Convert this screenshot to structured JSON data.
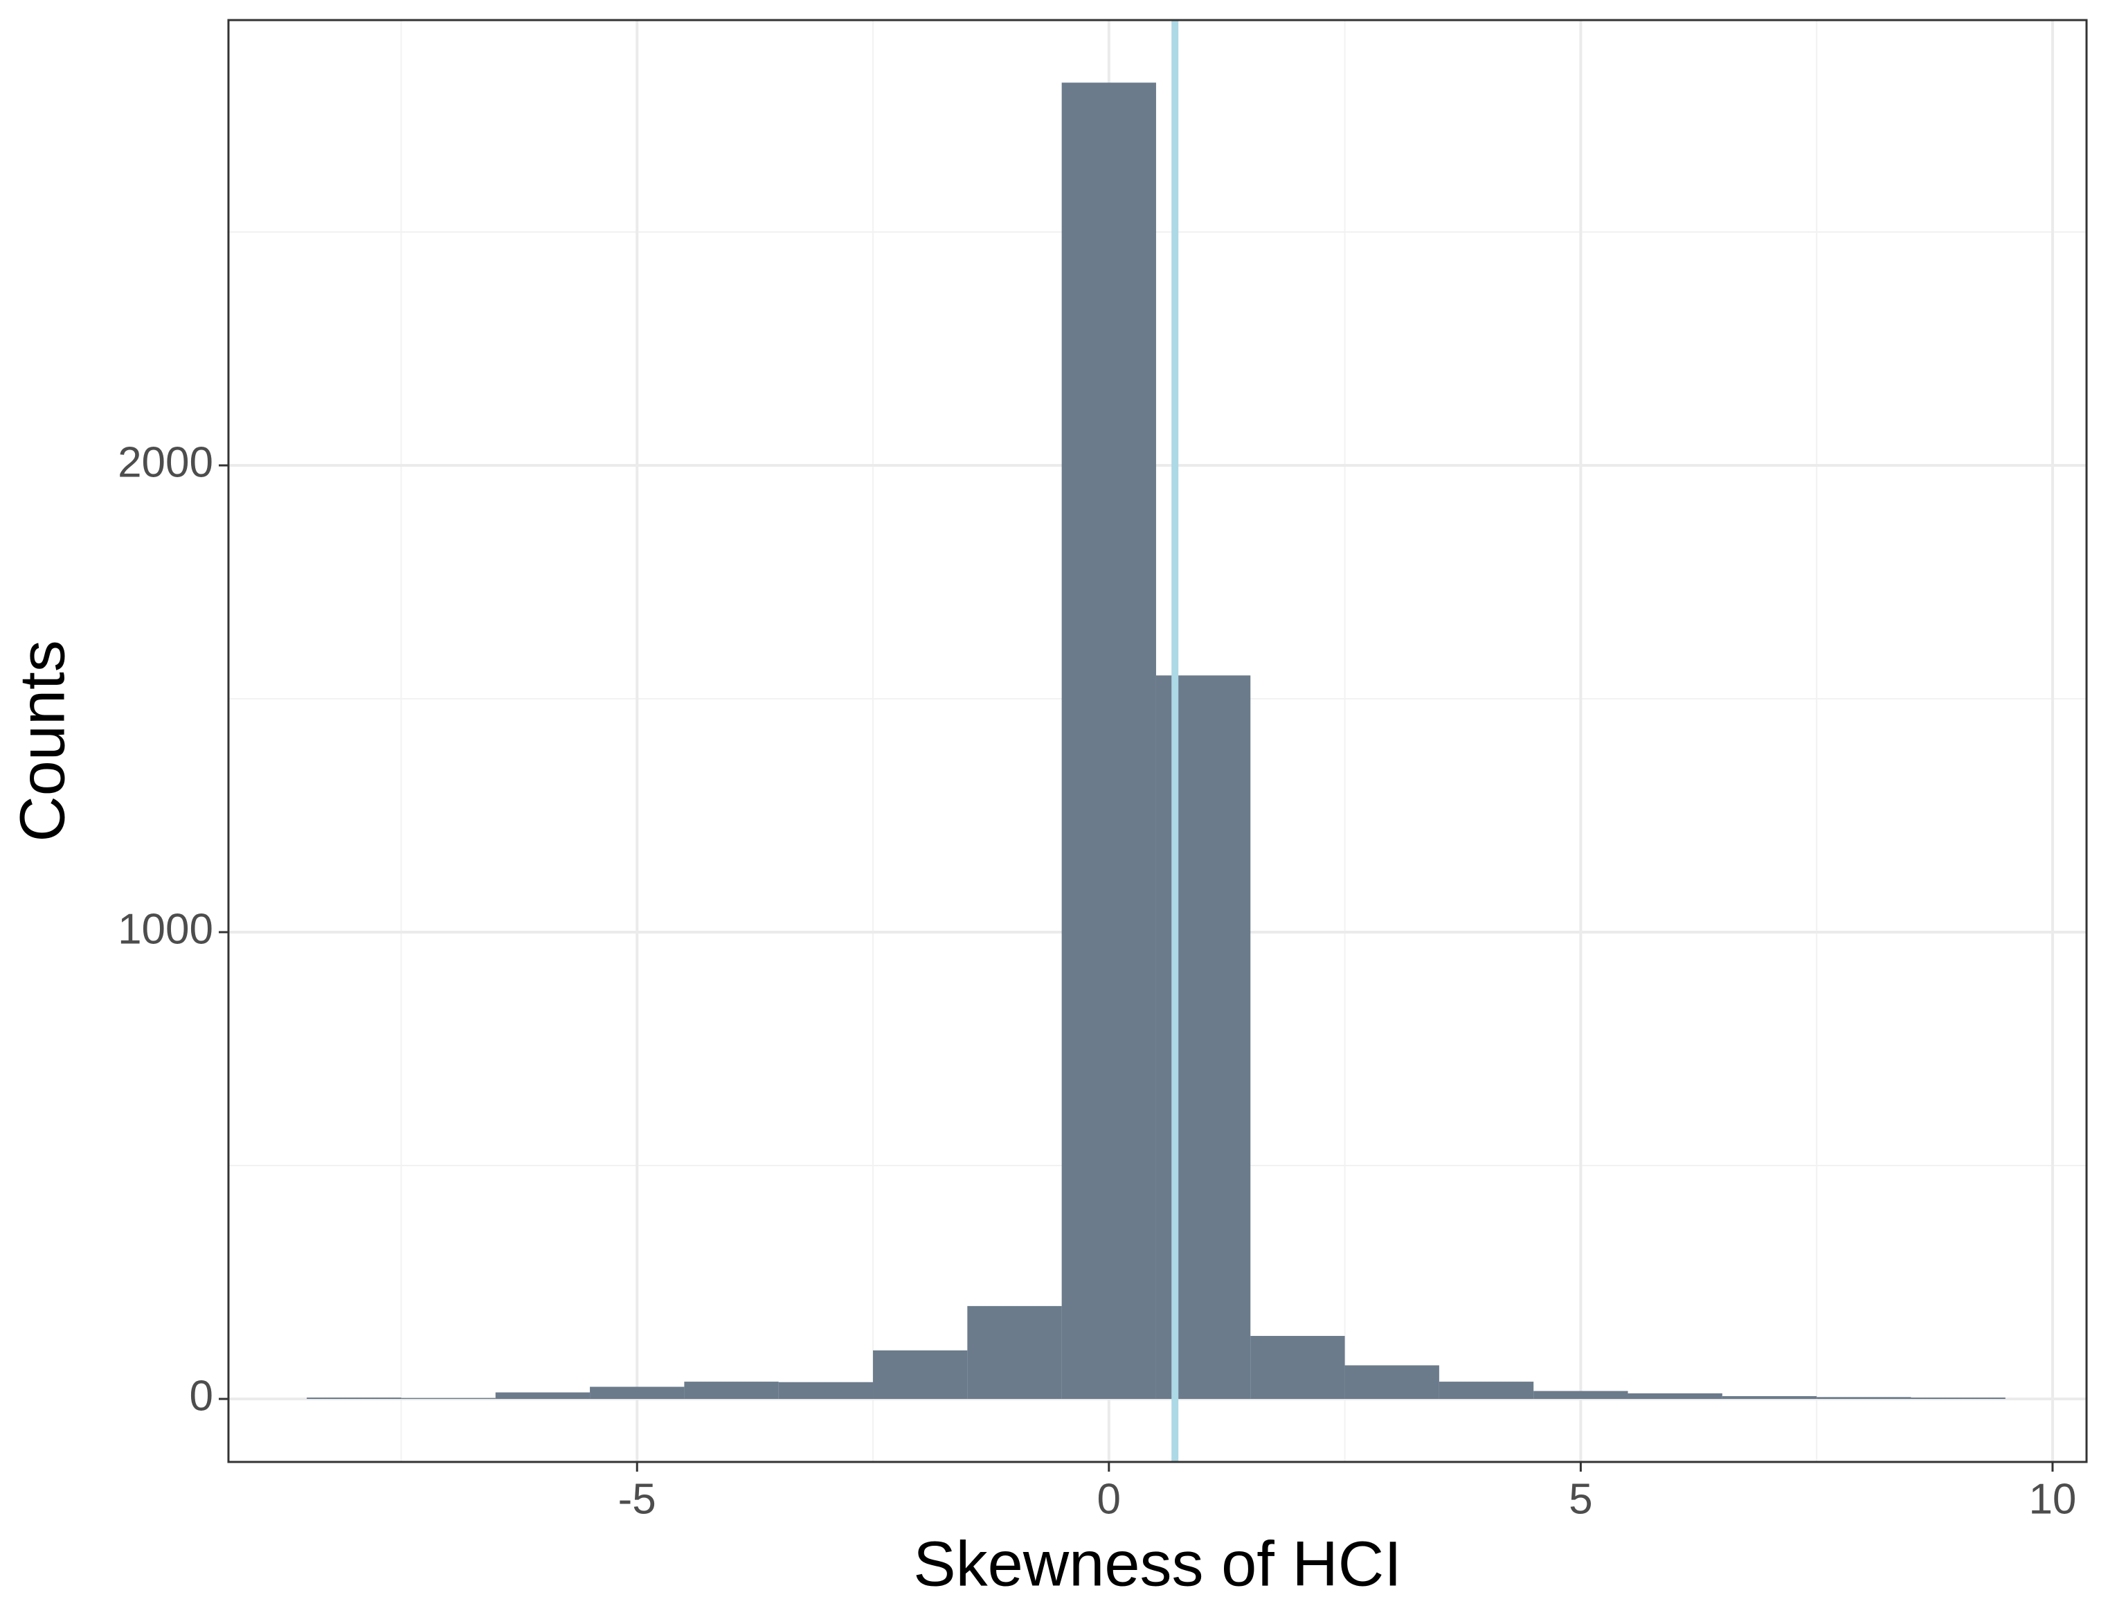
{
  "chart_data": {
    "type": "histogram",
    "x_label": "Skewness of HCI",
    "y_label": "Counts",
    "bins": [
      -8.5,
      -7.5,
      -6.5,
      -5.5,
      -4.5,
      -3.5,
      -2.5,
      -1.5,
      -0.5,
      0.5,
      1.5,
      2.5,
      3.5,
      4.5,
      5.5,
      6.5,
      7.5,
      8.5,
      9.5
    ],
    "counts": [
      3,
      2,
      14,
      26,
      37,
      36,
      104,
      199,
      2820,
      1550,
      135,
      72,
      37,
      17,
      12,
      6,
      4,
      3
    ],
    "color": "#6b7b8b",
    "xlim": [
      -9.33,
      10.36
    ],
    "xticks": [
      -5,
      0,
      5,
      10
    ],
    "ylim": [
      -135,
      2954
    ],
    "yticks": [
      0,
      1000,
      2000
    ],
    "grid": true,
    "x_minor_grid": [
      -7.5,
      -2.5,
      2.5,
      7.5
    ],
    "y_minor_grid": [
      500,
      1500,
      2500
    ],
    "vline": {
      "value": 0.7,
      "color": "#add8e6"
    }
  }
}
